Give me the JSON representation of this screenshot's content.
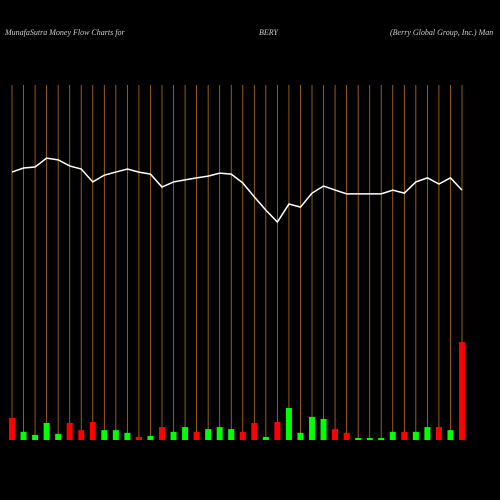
{
  "chart_data": {
    "type": "money-flow",
    "title": "MunafaSutra  Money Flow  Charts for",
    "symbol": "BERY",
    "company": "(Berry Global Group,  Inc.) Man",
    "categories": [
      null,
      null,
      null,
      null,
      null,
      null,
      null,
      null,
      null,
      null,
      null,
      null,
      null,
      null,
      null,
      null,
      null,
      null,
      null,
      null,
      null,
      null,
      null,
      null,
      null,
      null,
      null,
      null,
      null,
      null,
      null,
      null,
      null,
      null,
      null,
      null,
      null,
      null,
      null,
      null
    ],
    "line": {
      "color": "#ffffff",
      "values": [
        78.8,
        80,
        80.3,
        82.9,
        82.4,
        80.6,
        79.7,
        75.9,
        77.9,
        78.8,
        79.7,
        78.8,
        78.2,
        74.4,
        75.9,
        76.5,
        77.1,
        77.6,
        78.5,
        78.2,
        75.6,
        71.5,
        67.6,
        64.1,
        69.4,
        68.5,
        72.6,
        74.7,
        73.5,
        72.4,
        72.4,
        72.4,
        72.4,
        73.5,
        72.6,
        75.9,
        77.1,
        75.3,
        77.1,
        73.5
      ]
    },
    "bars": {
      "values": [
        6.5,
        2.4,
        1.5,
        5,
        1.8,
        5,
        2.9,
        5.3,
        2.9,
        2.9,
        2.1,
        0.9,
        1.2,
        3.8,
        2.4,
        3.8,
        2.4,
        3.2,
        3.8,
        3.2,
        2.4,
        5,
        0.9,
        5.3,
        9.4,
        2.1,
        6.8,
        6.2,
        3.2,
        2.1,
        0.6,
        0.6,
        0.6,
        2.4,
        2.4,
        2.4,
        3.8,
        3.8,
        2.9,
        28.8
      ],
      "colors": [
        "#ff0000",
        "#00ff00",
        "#00ff00",
        "#00ff00",
        "#00ff00",
        "#ff0000",
        "#ff0000",
        "#ff0000",
        "#00ff00",
        "#00ff00",
        "#00ff00",
        "#ff0000",
        "#00ff00",
        "#ff0000",
        "#00ff00",
        "#00ff00",
        "#ff0000",
        "#00ff00",
        "#00ff00",
        "#00ff00",
        "#ff0000",
        "#ff0000",
        "#00ff00",
        "#ff0000",
        "#00ff00",
        "#00ff00",
        "#00ff00",
        "#00ff00",
        "#ff0000",
        "#ff0000",
        "#00ff00",
        "#00ff00",
        "#00ff00",
        "#00ff00",
        "#ff0000",
        "#00ff00",
        "#00ff00",
        "#ff0000",
        "#00ff00",
        "#ff0000"
      ]
    },
    "ylim": [
      0,
      100
    ],
    "grid": true,
    "grid_color": "#b8731a"
  }
}
